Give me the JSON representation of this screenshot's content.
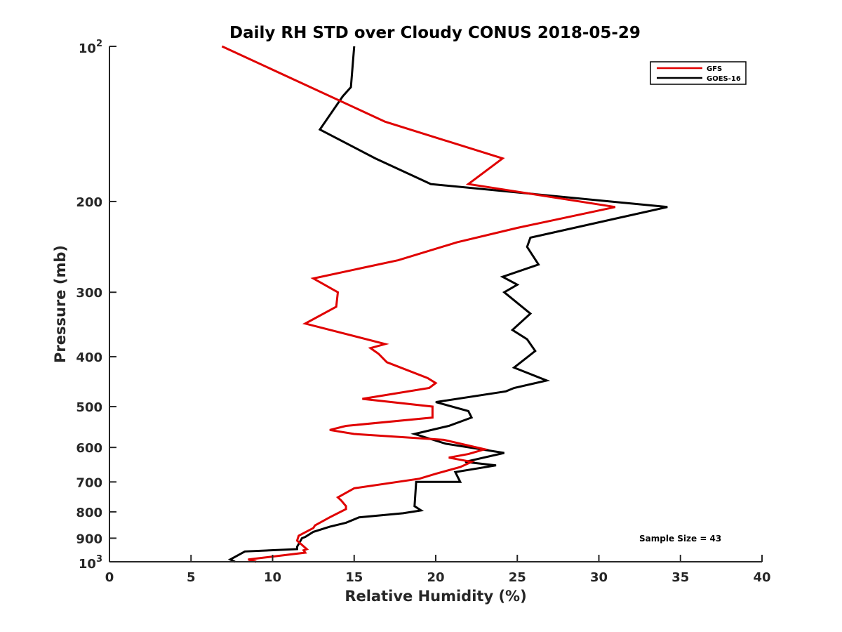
{
  "chart_data": {
    "type": "line",
    "title": "Daily RH STD over Cloudy CONUS 2018-05-29",
    "xlabel": "Relative Humidity (%)",
    "ylabel": "Pressure (mb)",
    "xlim": [
      0,
      40
    ],
    "ylim": [
      100,
      1000
    ],
    "yscale": "log",
    "y_reversed": true,
    "x_ticks": [
      0,
      5,
      10,
      15,
      20,
      25,
      30,
      35,
      40
    ],
    "x_tick_labels": [
      "0",
      "5",
      "10",
      "15",
      "20",
      "25",
      "30",
      "35",
      "40"
    ],
    "y_ticks": [
      200,
      300,
      400,
      500,
      600,
      700,
      800,
      900
    ],
    "y_tick_labels": [
      "200",
      "300",
      "400",
      "500",
      "600",
      "700",
      "800",
      "900"
    ],
    "y_end_labels": {
      "top_base": "10",
      "top_exp": "2",
      "bottom_base": "10",
      "bottom_exp": "3"
    },
    "legend": {
      "position": "top-right",
      "entries": [
        "GFS",
        "GOES-16"
      ]
    },
    "annotation": "Sample Size = 43",
    "series": [
      {
        "name": "GFS",
        "color": "#e00000",
        "x": [
          9.0,
          8.5,
          12.0,
          11.9,
          12.1,
          11.5,
          11.6,
          12.5,
          12.6,
          13.5,
          14.5,
          14.5,
          14.2,
          14.0,
          15.0,
          19.0,
          20.0,
          21.5,
          22.2,
          20.8,
          22.0,
          23.0,
          20.5,
          15.0,
          13.5,
          14.5,
          19.8,
          19.8,
          15.5,
          19.6,
          20.0,
          19.5,
          17.0,
          16.5,
          16.0,
          16.9,
          12.0,
          13.9,
          14.0,
          12.5,
          17.7,
          21.3,
          25.0,
          31.0,
          22.0,
          24.1,
          16.9,
          6.9
        ],
        "y": [
          1000,
          990,
          960,
          950,
          945,
          910,
          890,
          860,
          850,
          820,
          790,
          780,
          760,
          750,
          720,
          690,
          675,
          655,
          640,
          628,
          618,
          605,
          580,
          565,
          555,
          545,
          525,
          500,
          483,
          460,
          450,
          440,
          410,
          395,
          385,
          378,
          345,
          320,
          300,
          282,
          260,
          240,
          225,
          205,
          185,
          165,
          140,
          100
        ]
      },
      {
        "name": "GOES-16",
        "color": "#000000",
        "x": [
          7.7,
          7.4,
          8.3,
          11.5,
          11.5,
          11.8,
          12.0,
          12.5,
          13.5,
          14.5,
          15.3,
          18.0,
          19.1,
          18.7,
          18.8,
          21.5,
          21.2,
          23.7,
          21.8,
          24.2,
          20.6,
          18.7,
          20.8,
          22.2,
          22.0,
          20.0,
          24.3,
          24.8,
          26.8,
          24.8,
          26.1,
          25.6,
          24.7,
          25.8,
          24.2,
          25.0,
          24.1,
          26.3,
          25.6,
          25.8,
          34.2,
          19.7,
          16.3,
          12.9,
          14.3,
          14.8,
          15.0
        ],
        "y": [
          1000,
          990,
          955,
          945,
          935,
          900,
          895,
          875,
          855,
          840,
          820,
          805,
          795,
          780,
          700,
          700,
          670,
          650,
          640,
          615,
          590,
          565,
          545,
          525,
          510,
          490,
          467,
          460,
          445,
          420,
          390,
          370,
          355,
          330,
          300,
          290,
          280,
          265,
          245,
          235,
          205,
          185,
          165,
          145,
          125,
          120,
          100
        ]
      }
    ]
  }
}
